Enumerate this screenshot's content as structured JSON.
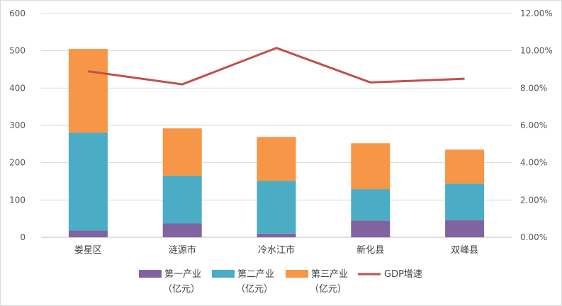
{
  "chart_data": {
    "type": "bar",
    "stacked": true,
    "categories": [
      "娄星区",
      "涟源市",
      "冷水江市",
      "新化县",
      "双峰县"
    ],
    "series": [
      {
        "name": "第一产业（亿元）",
        "name_lines": [
          "第一产业",
          "（亿元）"
        ],
        "color": "#8064a2",
        "values": [
          18,
          37,
          10,
          45,
          46
        ]
      },
      {
        "name": "第二产业（亿元）",
        "name_lines": [
          "第二产业",
          "（亿元）"
        ],
        "color": "#4bacc6",
        "values": [
          262,
          128,
          141,
          84,
          98
        ]
      },
      {
        "name": "第三产业（亿元）",
        "name_lines": [
          "第三产业",
          "（亿元）"
        ],
        "color": "#f79646",
        "values": [
          225,
          127,
          118,
          123,
          91
        ]
      }
    ],
    "line_series": {
      "name": "GDP增速",
      "color": "#c0504d",
      "axis": "right",
      "values": [
        8.9,
        8.2,
        10.15,
        8.3,
        8.5
      ]
    },
    "y_left": {
      "min": 0,
      "max": 600,
      "step": 100,
      "ticks": [
        "0",
        "100",
        "200",
        "300",
        "400",
        "500",
        "600"
      ]
    },
    "y_right": {
      "min": 0,
      "max": 12,
      "step": 2,
      "ticks": [
        "0.00%",
        "2.00%",
        "4.00%",
        "6.00%",
        "8.00%",
        "10.00%",
        "12.00%"
      ]
    },
    "grid": true,
    "legend_position": "bottom"
  }
}
